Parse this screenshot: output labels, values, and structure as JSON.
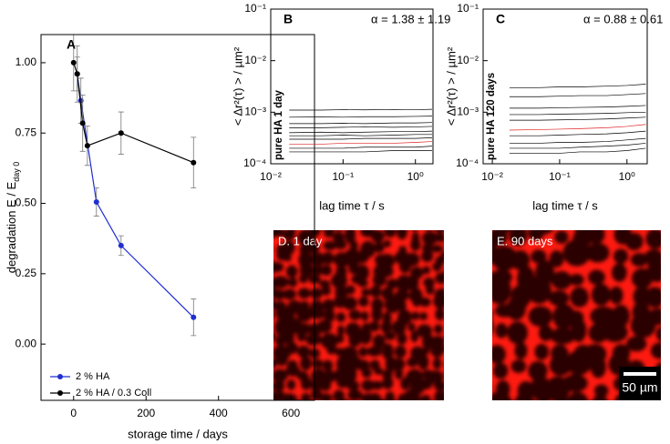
{
  "chart_data": [
    {
      "type": "line",
      "title": "A",
      "xlabel": "storage time / days",
      "ylabel": "degradation E / E",
      "ylabel_subscript": "day 0",
      "xlim": [
        -90,
        665
      ],
      "ylim": [
        -0.2,
        1.1
      ],
      "xticks": [
        0,
        200,
        400,
        600
      ],
      "yticks": [
        {
          "value": 0,
          "label": "0.00"
        },
        0.25,
        {
          "value": 0.5,
          "label": "0.50"
        },
        0.75,
        {
          "value": 1,
          "label": "1.00"
        }
      ],
      "legend": "lower left",
      "log_x": false,
      "log_y": false,
      "series": [
        {
          "name": "2 % HA",
          "color": "#1f2fd0",
          "x": [
            10,
            20,
            63,
            131,
            331
          ],
          "values": [
            0.96,
            0.865,
            0.505,
            0.35,
            0.095
          ],
          "errors": [
            0.06,
            0.08,
            0.05,
            0.035,
            0.065
          ]
        },
        {
          "name": "2 % HA / 0.3 Coll",
          "color": "#000000",
          "x": [
            0,
            10,
            25,
            38,
            131,
            331
          ],
          "values": [
            1.0,
            0.96,
            0.785,
            0.705,
            0.75,
            0.645
          ],
          "errors": [
            0.1,
            0.1,
            0.1,
            0.07,
            0.075,
            0.09
          ]
        }
      ]
    },
    {
      "type": "line",
      "title": "B",
      "annotation": "α = 1.38 ± 1.19",
      "inset_label": "pure HA 1 day",
      "xlabel": "lag time τ / s",
      "ylabel": "< Δr²(τ) > / µm²",
      "log_x": true,
      "log_y": true,
      "xlim": [
        0.01,
        1.75
      ],
      "ylim": [
        0.0001,
        0.1
      ],
      "xticks": [
        {
          "value": 0.01,
          "label": "10⁻²"
        },
        {
          "value": 0.1,
          "label": "10⁻¹"
        },
        {
          "value": 1,
          "label": "10⁰"
        }
      ],
      "yticks": [
        {
          "value": 0.0001,
          "label": "10⁻⁴"
        },
        {
          "value": 0.001,
          "label": "10⁻³"
        },
        {
          "value": 0.01,
          "label": "10⁻²"
        },
        {
          "value": 0.1,
          "label": "10⁻¹"
        }
      ],
      "x": [
        0.018,
        0.05,
        0.1,
        0.2,
        0.5,
        1,
        1.7
      ],
      "series": [
        {
          "color": "#000000",
          "values": [
            0.0011,
            0.0011,
            0.00112,
            0.00111,
            0.00113,
            0.00112,
            0.00114
          ]
        },
        {
          "color": "#000000",
          "values": [
            0.0008,
            0.00081,
            0.0008,
            0.00082,
            0.00082,
            0.00083,
            0.00084
          ]
        },
        {
          "color": "#000000",
          "values": [
            0.0006,
            0.0006,
            0.00061,
            0.0006,
            0.00062,
            0.00062,
            0.00063
          ]
        },
        {
          "color": "#000000",
          "values": [
            0.0005,
            0.0005,
            0.00051,
            0.00052,
            0.00051,
            0.00052,
            0.00053
          ]
        },
        {
          "color": "#000000",
          "values": [
            0.0004,
            0.00041,
            0.0004,
            0.00041,
            0.00042,
            0.00042,
            0.00043
          ]
        },
        {
          "color": "#000000",
          "values": [
            0.00035,
            0.00035,
            0.00036,
            0.00035,
            0.00036,
            0.00037,
            0.00037
          ]
        },
        {
          "color": "#000000",
          "values": [
            0.0003,
            0.0003,
            0.0003,
            0.00031,
            0.00031,
            0.00031,
            0.00032
          ]
        },
        {
          "color": "#000000",
          "values": [
            0.0002,
            0.0002,
            0.0002,
            0.00021,
            0.00021,
            0.00021,
            0.00022
          ]
        },
        {
          "color": "#000000",
          "values": [
            0.00017,
            0.00017,
            0.00017,
            0.00017,
            0.00018,
            0.00018,
            0.00018
          ]
        },
        {
          "color": "#e02020",
          "values": [
            0.00024,
            0.00024,
            0.00025,
            0.00025,
            0.00025,
            0.00026,
            0.00027
          ]
        }
      ]
    },
    {
      "type": "line",
      "title": "C",
      "annotation": "α = 0.88 ± 0.61",
      "inset_label": "pure HA 120 days",
      "xlabel": "lag time τ / s",
      "ylabel": "< Δr²(τ) > / µm²",
      "log_x": true,
      "log_y": true,
      "xlim": [
        0.0073,
        2
      ],
      "ylim": [
        0.0001,
        0.1
      ],
      "xticks": [
        {
          "value": 0.01,
          "label": "10⁻²"
        },
        {
          "value": 0.1,
          "label": "10⁻¹"
        },
        {
          "value": 1,
          "label": "10⁰"
        }
      ],
      "yticks": [
        {
          "value": 0.0001,
          "label": "10⁻⁴"
        },
        {
          "value": 0.001,
          "label": "10⁻³"
        },
        {
          "value": 0.01,
          "label": "10⁻²"
        },
        {
          "value": 0.1,
          "label": "10⁻¹"
        }
      ],
      "x": [
        0.018,
        0.05,
        0.1,
        0.2,
        0.5,
        1,
        1.9
      ],
      "series": [
        {
          "color": "#000000",
          "values": [
            0.003,
            0.003,
            0.0031,
            0.0031,
            0.0032,
            0.0033,
            0.0035
          ]
        },
        {
          "color": "#000000",
          "values": [
            0.002,
            0.002,
            0.00205,
            0.0021,
            0.0021,
            0.0022,
            0.0023
          ]
        },
        {
          "color": "#000000",
          "values": [
            0.0012,
            0.0012,
            0.00122,
            0.00124,
            0.00126,
            0.0013,
            0.00135
          ]
        },
        {
          "color": "#000000",
          "values": [
            0.0009,
            0.0009,
            0.00092,
            0.00093,
            0.00095,
            0.00098,
            0.001
          ]
        },
        {
          "color": "#000000",
          "values": [
            0.0007,
            0.0007,
            0.00071,
            0.00072,
            0.00074,
            0.00077,
            0.0008
          ]
        },
        {
          "color": "#000000",
          "values": [
            0.00035,
            0.00035,
            0.00036,
            0.00037,
            0.00038,
            0.0004,
            0.00043
          ]
        },
        {
          "color": "#000000",
          "values": [
            0.00025,
            0.00025,
            0.00026,
            0.00026,
            0.00027,
            0.00029,
            0.00031
          ]
        },
        {
          "color": "#000000",
          "values": [
            0.0002,
            0.0002,
            0.0002,
            0.00021,
            0.00022,
            0.00023,
            0.00025
          ]
        },
        {
          "color": "#000000",
          "values": [
            0.00016,
            0.00016,
            0.00016,
            0.00017,
            0.00017,
            0.00018,
            0.0002
          ]
        },
        {
          "color": "#e02020",
          "values": [
            0.00045,
            0.00046,
            0.00047,
            0.00048,
            0.0005,
            0.00053,
            0.00058
          ]
        }
      ]
    }
  ],
  "images": [
    {
      "label": "D. 1 day"
    },
    {
      "label": "E. 90 days",
      "scale_bar": "50 µm"
    }
  ]
}
